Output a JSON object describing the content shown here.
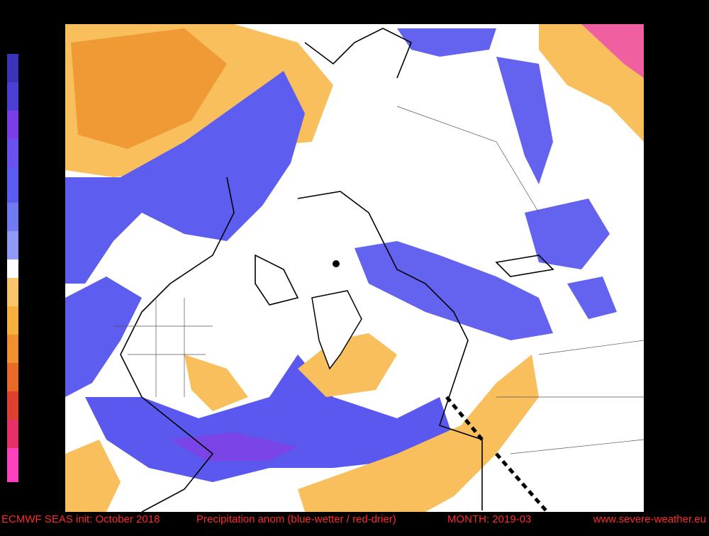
{
  "footer": {
    "init": "ECMWF SEAS init: October 2018",
    "title": "Precipitation anom (blue-wetter / red-drier)",
    "month": "MONTH: 2019-03",
    "source": "www.severe-weather.eu"
  }
}
